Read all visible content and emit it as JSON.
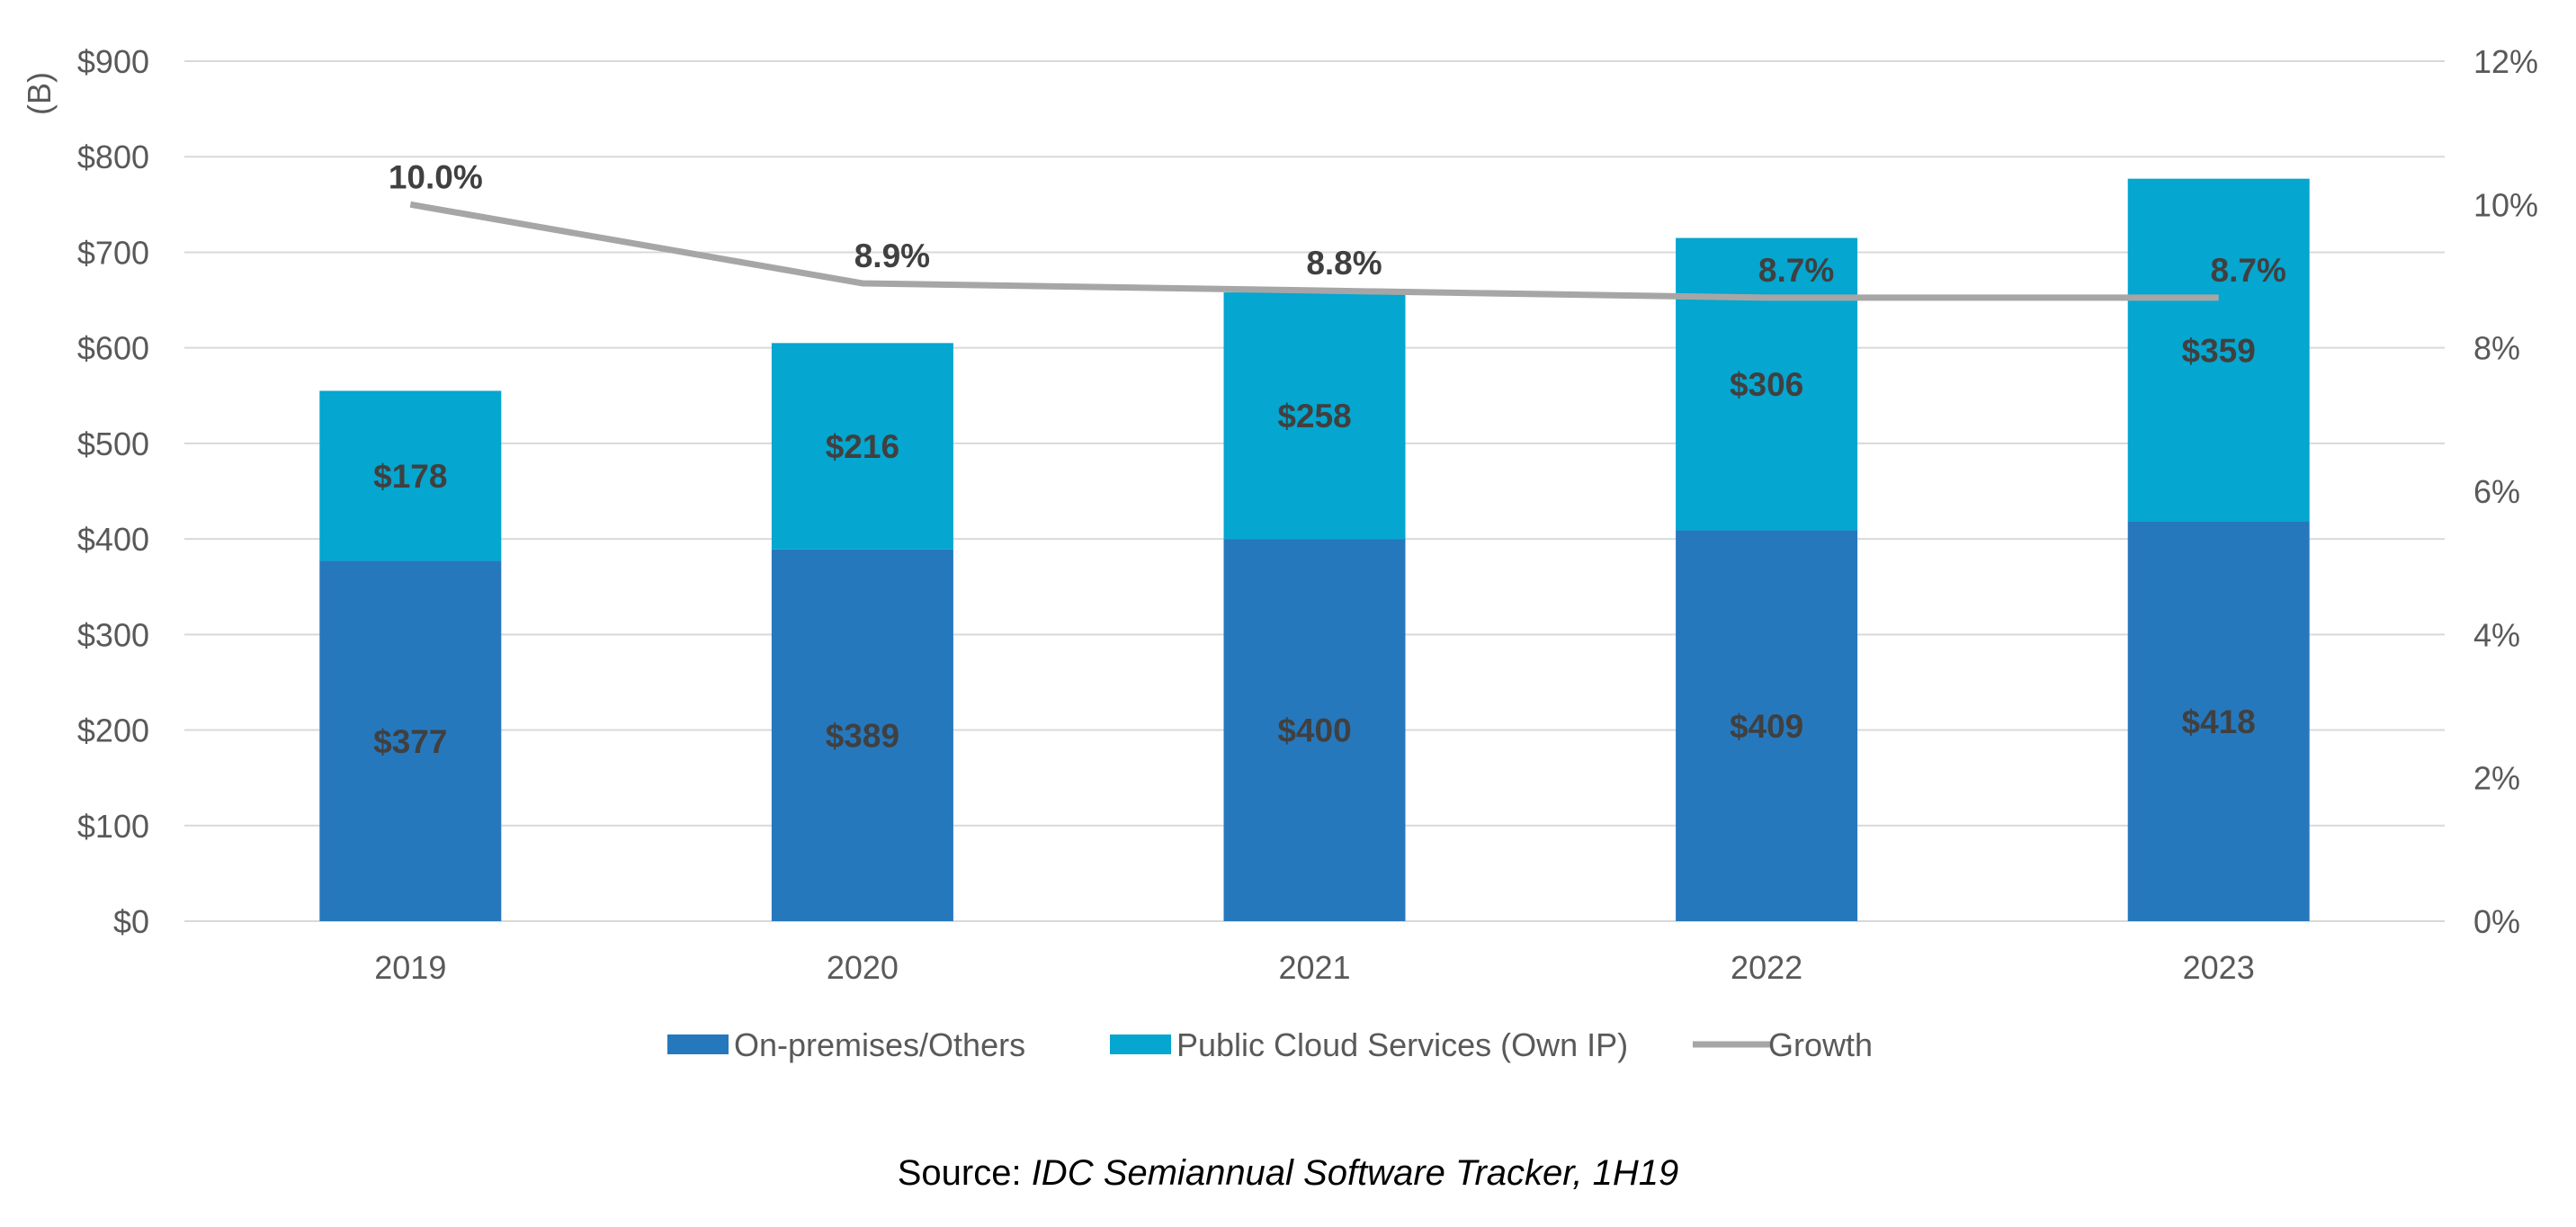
{
  "chart_data": {
    "type": "bar",
    "stacked": true,
    "categories": [
      "2019",
      "2020",
      "2021",
      "2022",
      "2023"
    ],
    "series": [
      {
        "name": "On-premises/Others",
        "type": "bar",
        "axis": "left",
        "color": "#2678BD",
        "values": [
          377,
          389,
          400,
          409,
          418
        ],
        "labels": [
          "$377",
          "$389",
          "$400",
          "$409",
          "$418"
        ]
      },
      {
        "name": "Public Cloud Services (Own IP)",
        "type": "bar",
        "axis": "left",
        "color": "#05A6CF",
        "values": [
          178,
          216,
          258,
          306,
          359
        ],
        "labels": [
          "$178",
          "$216",
          "$258",
          "$306",
          "$359"
        ]
      },
      {
        "name": "Growth",
        "type": "line",
        "axis": "right",
        "color": "#A6A6A6",
        "values": [
          10.0,
          8.9,
          8.8,
          8.7,
          8.7
        ],
        "labels": [
          "10.0%",
          "8.9%",
          "8.8%",
          "8.7%",
          "8.7%"
        ]
      }
    ],
    "ylabel": "(B)",
    "ylim": [
      0,
      900
    ],
    "y_ticks": [
      "$0",
      "$100",
      "$200",
      "$300",
      "$400",
      "$500",
      "$600",
      "$700",
      "$800",
      "$900"
    ],
    "y2lim": [
      0,
      12
    ],
    "y2_ticks": [
      "0%",
      "2%",
      "4%",
      "6%",
      "8%",
      "10%",
      "12%"
    ],
    "grid": true,
    "legend_position": "bottom"
  },
  "source": {
    "prefix": "Source: ",
    "name": "IDC Semiannual Software Tracker, 1H19"
  }
}
